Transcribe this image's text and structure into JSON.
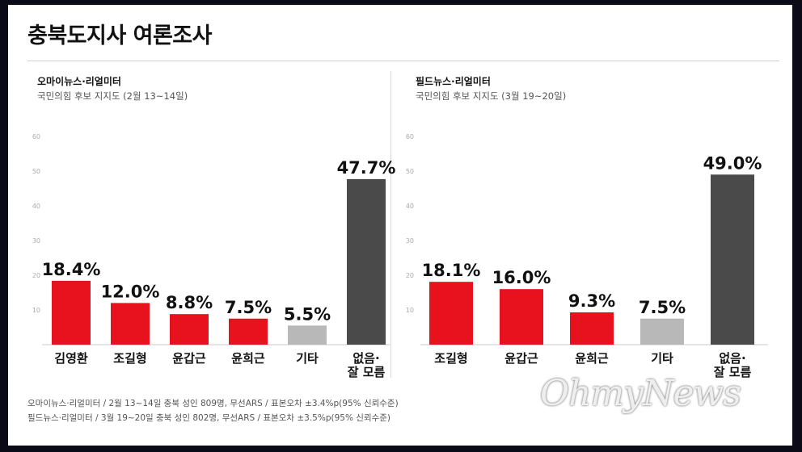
{
  "page": {
    "title": "충북도지사 여론조사",
    "footer_lines": [
      "오마이뉴스·리얼미터 / 2월 13~14일 충북 성인 809명, 무선ARS / 표본오차 ±3.4%p(95% 신뢰수준)",
      "필드뉴스·리얼미터 / 3월 19~20일 충북 성인 802명, 무선ARS / 표본오차 ±3.5%p(95% 신뢰수준)"
    ],
    "watermark": "OhmyNews"
  },
  "chart_data": [
    {
      "type": "bar",
      "title": "오마이뉴스·리얼미터",
      "subtitle": "국민의힘 후보 지지도 (2월 13~14일)",
      "categories": [
        "김영환",
        "조길형",
        "윤갑근",
        "윤희근",
        "기타",
        "없음·\n잘 모름"
      ],
      "values": [
        18.4,
        12.0,
        8.8,
        7.5,
        5.5,
        47.7
      ],
      "labels": [
        "18.4%",
        "12.0%",
        "8.8%",
        "7.5%",
        "5.5%",
        "47.7%"
      ],
      "colors": [
        "#e8121f",
        "#e8121f",
        "#e8121f",
        "#e8121f",
        "#b8b8b8",
        "#4a4a4a"
      ],
      "yticks": [
        10,
        20,
        30,
        40,
        50,
        60
      ],
      "ylim": [
        0,
        60
      ],
      "grid": false
    },
    {
      "type": "bar",
      "title": "필드뉴스·리얼미터",
      "subtitle": "국민의힘 후보 지지도 (3월 19~20일)",
      "categories": [
        "조길형",
        "윤갑근",
        "윤희근",
        "기타",
        "없음·\n잘 모름"
      ],
      "values": [
        18.1,
        16.0,
        9.3,
        7.5,
        49.0
      ],
      "labels": [
        "18.1%",
        "16.0%",
        "9.3%",
        "7.5%",
        "49.0%"
      ],
      "colors": [
        "#e8121f",
        "#e8121f",
        "#e8121f",
        "#b8b8b8",
        "#4a4a4a"
      ],
      "yticks": [
        10,
        20,
        30,
        40,
        50,
        60
      ],
      "ylim": [
        0,
        60
      ],
      "grid": false
    }
  ]
}
